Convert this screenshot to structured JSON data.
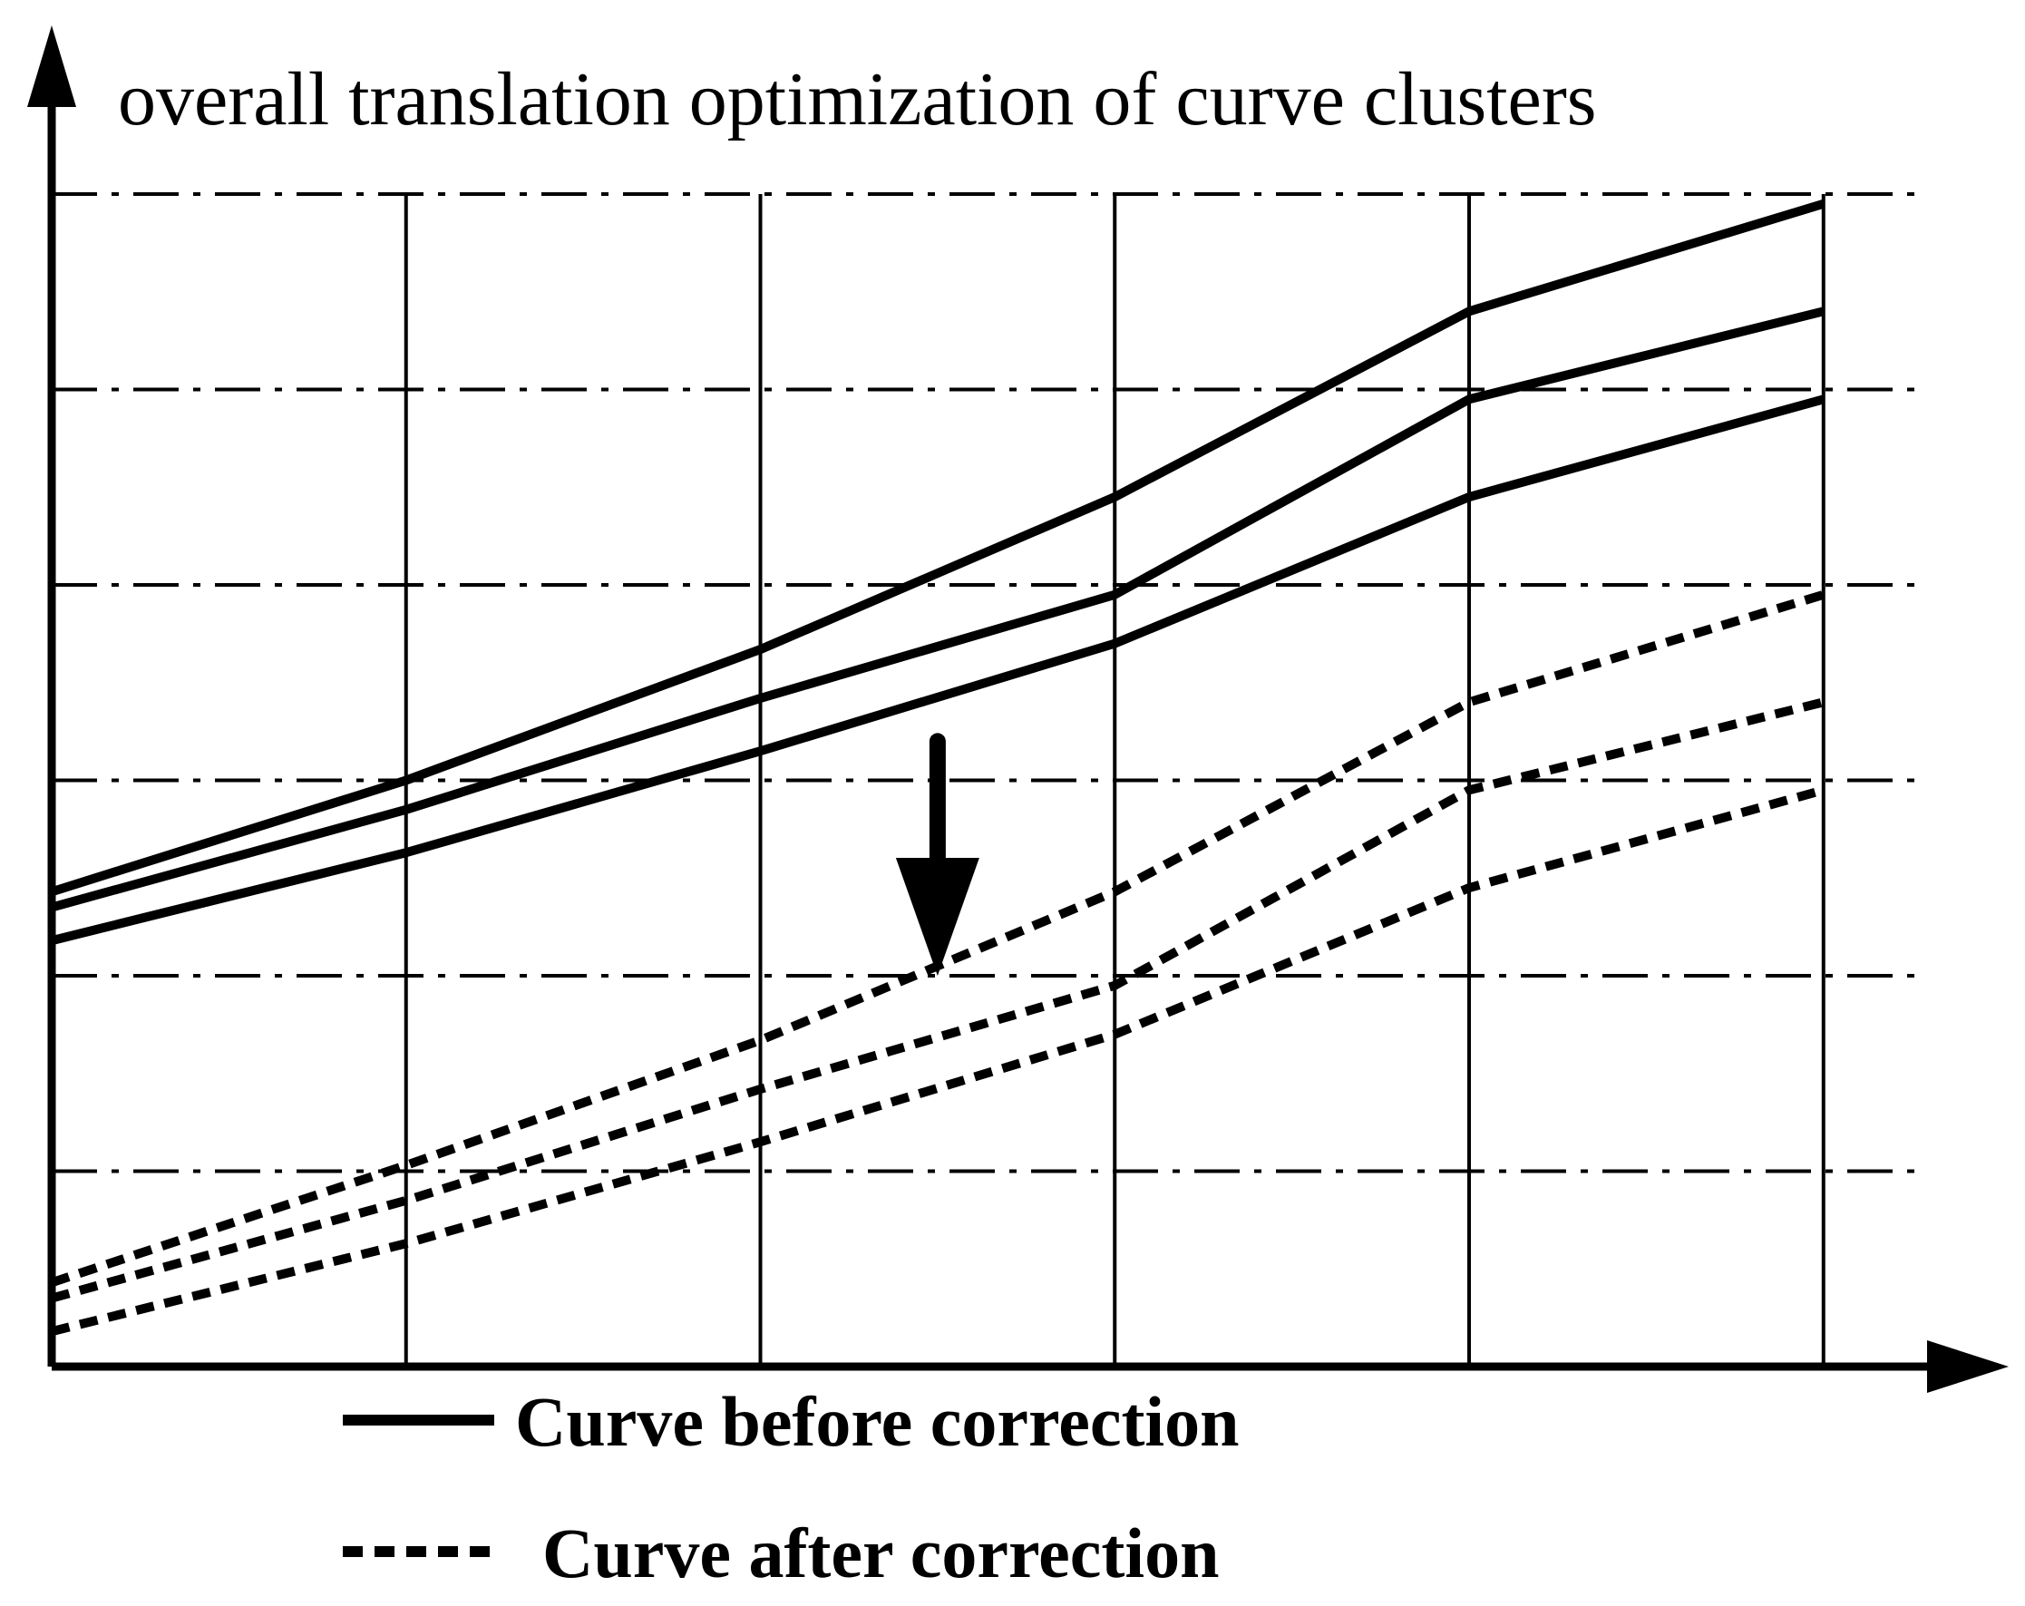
{
  "chart_data": {
    "type": "line",
    "title": "overall translation optimization of curve clusters",
    "xlabel": "",
    "ylabel": "",
    "x": [
      0,
      1,
      2,
      3,
      4,
      5
    ],
    "xlim": [
      0,
      5.3
    ],
    "ylim": [
      0,
      6
    ],
    "grid": {
      "horizontal": "dash-dot",
      "horizontal_values": [
        1,
        2,
        3,
        4,
        5,
        6
      ],
      "vertical": "solid",
      "vertical_values": [
        1,
        2,
        3,
        4,
        5
      ]
    },
    "series": [
      {
        "group": "before",
        "values": [
          2.43,
          3.0,
          3.67,
          4.45,
          5.4,
          5.95
        ]
      },
      {
        "group": "before",
        "values": [
          2.35,
          2.85,
          3.42,
          3.95,
          4.95,
          5.4
        ]
      },
      {
        "group": "before",
        "values": [
          2.18,
          2.63,
          3.15,
          3.7,
          4.45,
          4.95
        ]
      },
      {
        "group": "after",
        "values": [
          0.43,
          1.03,
          1.67,
          2.43,
          3.4,
          3.95
        ]
      },
      {
        "group": "after",
        "values": [
          0.35,
          0.85,
          1.42,
          1.95,
          2.95,
          3.4
        ]
      },
      {
        "group": "after",
        "values": [
          0.18,
          0.63,
          1.15,
          1.7,
          2.45,
          2.95
        ]
      }
    ],
    "legend": {
      "position": "bottom",
      "entries": [
        {
          "group": "before",
          "label": "Curve before correction",
          "style": "solid"
        },
        {
          "group": "after",
          "label": "Curve after correction",
          "style": "dashed"
        }
      ]
    },
    "annotations": [
      {
        "type": "arrow-down",
        "x": 2.5,
        "y_from": 3.2,
        "y_to": 2.0
      }
    ]
  }
}
